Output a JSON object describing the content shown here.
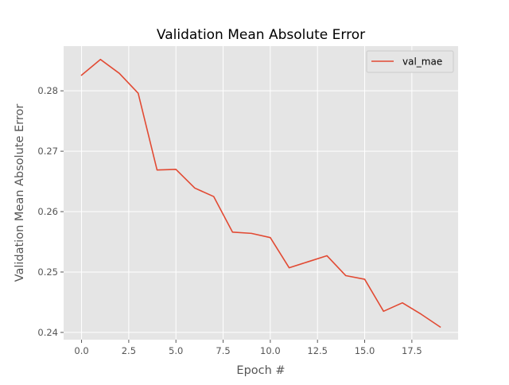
{
  "chart_data": {
    "type": "line",
    "title": "Validation Mean Absolute Error",
    "xlabel": "Epoch #",
    "ylabel": "Validation Mean Absolute Error",
    "xlim": [
      -0.95,
      19.95
    ],
    "ylim": [
      0.2388,
      0.2874
    ],
    "x_ticks": [
      0,
      2.5,
      5,
      7.5,
      10,
      12.5,
      15,
      17.5
    ],
    "x_tick_labels": [
      "0.0",
      "2.5",
      "5.0",
      "7.5",
      "10.0",
      "12.5",
      "15.0",
      "17.5"
    ],
    "y_ticks": [
      0.24,
      0.25,
      0.26,
      0.27,
      0.28
    ],
    "y_tick_labels": [
      "0.24",
      "0.25",
      "0.26",
      "0.27",
      "0.28"
    ],
    "grid": true,
    "legend_position": "top-right",
    "series": [
      {
        "name": "val_mae",
        "color": "#e24a33",
        "x": [
          0,
          1,
          2,
          3,
          4,
          5,
          6,
          7,
          8,
          9,
          10,
          11,
          12,
          13,
          14,
          15,
          16,
          17,
          18,
          19
        ],
        "y": [
          0.2826,
          0.2852,
          0.2829,
          0.2796,
          0.2669,
          0.267,
          0.2639,
          0.2625,
          0.2566,
          0.2564,
          0.2557,
          0.2507,
          0.2517,
          0.2527,
          0.2494,
          0.2488,
          0.2435,
          0.2449,
          0.243,
          0.2409
        ]
      }
    ]
  },
  "style": {
    "axes_background": "#e5e5e5",
    "grid_color": "#ffffff",
    "text_color": "#555555",
    "title_color": "#000000"
  }
}
